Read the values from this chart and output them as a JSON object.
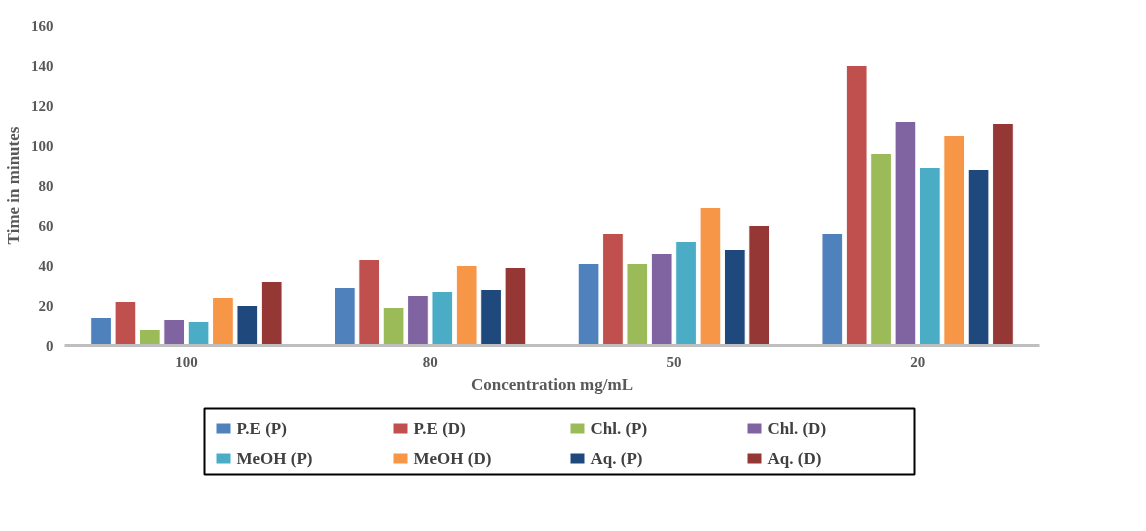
{
  "chart_data": {
    "type": "bar",
    "xlabel": "Concentration mg/mL",
    "ylabel": "Time in minutes",
    "categories": [
      "100",
      "80",
      "50",
      "20"
    ],
    "ylim": [
      0,
      160
    ],
    "yticks": [
      0,
      20,
      40,
      60,
      80,
      100,
      120,
      140,
      160
    ],
    "grid": false,
    "legend": "bottom",
    "series": [
      {
        "name": "P.E (P)",
        "color": "#4f81bd",
        "values": [
          14,
          29,
          41,
          56
        ]
      },
      {
        "name": "P.E (D)",
        "color": "#c0504d",
        "values": [
          22,
          43,
          56,
          140
        ]
      },
      {
        "name": "Chl. (P)",
        "color": "#9bbb59",
        "values": [
          8,
          19,
          41,
          96
        ]
      },
      {
        "name": "Chl. (D)",
        "color": "#8064a2",
        "values": [
          13,
          25,
          46,
          112
        ]
      },
      {
        "name": "MeOH (P)",
        "color": "#4bacc6",
        "values": [
          12,
          27,
          52,
          89
        ]
      },
      {
        "name": "MeOH (D)",
        "color": "#f79646",
        "values": [
          24,
          40,
          69,
          105
        ]
      },
      {
        "name": "Aq. (P)",
        "color": "#1f497d",
        "values": [
          20,
          28,
          48,
          88
        ]
      },
      {
        "name": "Aq. (D)",
        "color": "#953735",
        "values": [
          32,
          39,
          60,
          111
        ]
      }
    ]
  }
}
